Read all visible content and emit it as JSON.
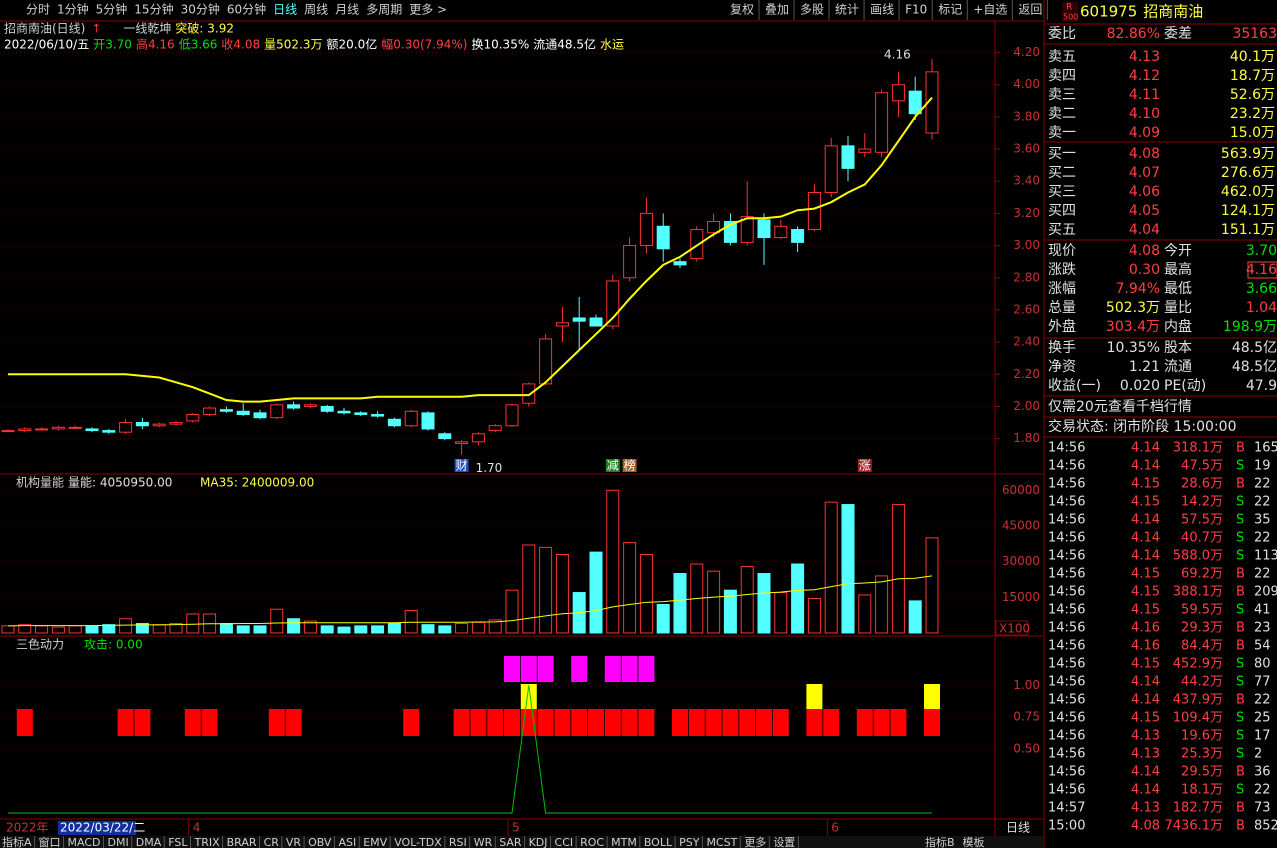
{
  "toolbar": {
    "left": [
      "分时",
      "1分钟",
      "5分钟",
      "15分钟",
      "30分钟",
      "60分钟",
      "日线",
      "周线",
      "月线",
      "多周期",
      "更多 >"
    ],
    "active": "日线",
    "right": [
      "复权",
      "叠加",
      "多股",
      "统计",
      "画线",
      "F10",
      "标记",
      "+自选",
      "返回"
    ]
  },
  "header": {
    "title": "招商南油(日线)",
    "indicator": "一线乾坤",
    "breakout": "突破: 3.92"
  },
  "info": [
    {
      "text": "2022/06/10/五",
      "color": "#ffffff"
    },
    {
      "text": "开3.70",
      "color": "#00e000"
    },
    {
      "text": "高4.16",
      "color": "#ff4040"
    },
    {
      "text": "低3.66",
      "color": "#00e000"
    },
    {
      "text": "收4.08",
      "color": "#ff4040"
    },
    {
      "text": "量502.3万",
      "color": "#ffff40"
    },
    {
      "text": "额20.0亿",
      "color": "#ffffff"
    },
    {
      "text": "幅0.30(7.94%)",
      "color": "#ff4040"
    },
    {
      "text": "换10.35%",
      "color": "#ffffff"
    },
    {
      "text": "流通48.5亿",
      "color": "#ffffff"
    },
    {
      "text": "水运",
      "color": "#ffff40"
    }
  ],
  "price_chart": {
    "ylim": [
      1.58,
      4.39
    ],
    "yticks": [
      {
        "value": 1.8,
        "label": "1.80"
      },
      {
        "value": 2.0,
        "label": "2.00"
      },
      {
        "value": 2.2,
        "label": "2.20"
      },
      {
        "value": 2.4,
        "label": "2.40"
      },
      {
        "value": 2.6,
        "label": "2.60"
      },
      {
        "value": 2.8,
        "label": "2.80"
      },
      {
        "value": 3.0,
        "label": "3.00"
      },
      {
        "value": 3.2,
        "label": "3.20"
      },
      {
        "value": 3.4,
        "label": "3.40"
      },
      {
        "value": 3.6,
        "label": "3.60"
      },
      {
        "value": 3.8,
        "label": "3.80"
      },
      {
        "value": 4.0,
        "label": "4.00"
      },
      {
        "value": 4.2,
        "label": "4.20"
      }
    ],
    "up_color": "#ff3232",
    "down_color": "#54ffff",
    "ma_color": "#ffff00",
    "candles": [
      [
        1.85,
        1.86,
        1.84,
        1.85
      ],
      [
        1.85,
        1.87,
        1.84,
        1.86
      ],
      [
        1.86,
        1.87,
        1.85,
        1.86
      ],
      [
        1.86,
        1.88,
        1.85,
        1.87
      ],
      [
        1.87,
        1.88,
        1.86,
        1.87
      ],
      [
        1.86,
        1.87,
        1.84,
        1.85
      ],
      [
        1.85,
        1.86,
        1.83,
        1.84
      ],
      [
        1.84,
        1.92,
        1.83,
        1.9
      ],
      [
        1.9,
        1.93,
        1.86,
        1.88
      ],
      [
        1.88,
        1.9,
        1.87,
        1.89
      ],
      [
        1.89,
        1.91,
        1.88,
        1.9
      ],
      [
        1.91,
        1.96,
        1.9,
        1.95
      ],
      [
        1.95,
        2.0,
        1.94,
        1.99
      ],
      [
        1.98,
        2.0,
        1.96,
        1.97
      ],
      [
        1.97,
        2.02,
        1.94,
        1.95
      ],
      [
        1.96,
        1.98,
        1.92,
        1.93
      ],
      [
        1.93,
        2.02,
        1.92,
        2.01
      ],
      [
        2.01,
        2.03,
        1.98,
        1.99
      ],
      [
        2.0,
        2.02,
        1.99,
        2.01
      ],
      [
        2.0,
        2.01,
        1.96,
        1.97
      ],
      [
        1.97,
        1.99,
        1.95,
        1.96
      ],
      [
        1.96,
        1.97,
        1.94,
        1.95
      ],
      [
        1.95,
        1.97,
        1.93,
        1.94
      ],
      [
        1.92,
        1.93,
        1.87,
        1.88
      ],
      [
        1.88,
        1.98,
        1.87,
        1.97
      ],
      [
        1.96,
        1.97,
        1.85,
        1.86
      ],
      [
        1.83,
        1.84,
        1.79,
        1.8
      ],
      [
        1.77,
        1.79,
        1.7,
        1.78
      ],
      [
        1.78,
        1.84,
        1.76,
        1.83
      ],
      [
        1.85,
        1.89,
        1.84,
        1.88
      ],
      [
        1.88,
        2.02,
        1.87,
        2.01
      ],
      [
        2.02,
        2.15,
        2.0,
        2.14
      ],
      [
        2.14,
        2.45,
        2.13,
        2.42
      ],
      [
        2.5,
        2.62,
        2.4,
        2.52
      ],
      [
        2.55,
        2.68,
        2.35,
        2.53
      ],
      [
        2.55,
        2.57,
        2.5,
        2.5
      ],
      [
        2.5,
        2.82,
        2.48,
        2.78
      ],
      [
        2.8,
        3.05,
        2.78,
        3.0
      ],
      [
        3.0,
        3.3,
        2.95,
        3.2
      ],
      [
        3.12,
        3.2,
        2.9,
        2.98
      ],
      [
        2.9,
        2.92,
        2.86,
        2.88
      ],
      [
        2.92,
        3.12,
        2.9,
        3.1
      ],
      [
        3.08,
        3.2,
        3.05,
        3.15
      ],
      [
        3.15,
        3.2,
        3.0,
        3.02
      ],
      [
        3.02,
        3.4,
        3.0,
        3.18
      ],
      [
        3.16,
        3.2,
        2.88,
        3.05
      ],
      [
        3.05,
        3.16,
        3.04,
        3.12
      ],
      [
        3.1,
        3.12,
        2.96,
        3.02
      ],
      [
        3.1,
        3.38,
        3.09,
        3.33
      ],
      [
        3.33,
        3.67,
        3.3,
        3.62
      ],
      [
        3.62,
        3.68,
        3.4,
        3.48
      ],
      [
        3.58,
        3.7,
        3.55,
        3.6
      ],
      [
        3.58,
        3.97,
        3.55,
        3.95
      ],
      [
        3.9,
        4.08,
        3.8,
        4.0
      ],
      [
        3.96,
        4.05,
        3.78,
        3.82
      ],
      [
        3.7,
        4.16,
        3.66,
        4.08
      ]
    ],
    "ma": [
      2.2,
      2.2,
      2.2,
      2.2,
      2.2,
      2.2,
      2.2,
      2.2,
      2.19,
      2.18,
      2.15,
      2.12,
      2.08,
      2.04,
      2.03,
      2.03,
      2.04,
      2.05,
      2.05,
      2.05,
      2.05,
      2.05,
      2.06,
      2.06,
      2.06,
      2.06,
      2.06,
      2.06,
      2.07,
      2.07,
      2.07,
      2.07,
      2.15,
      2.25,
      2.35,
      2.45,
      2.55,
      2.67,
      2.78,
      2.88,
      2.93,
      3.0,
      3.07,
      3.13,
      3.17,
      3.17,
      3.18,
      3.22,
      3.23,
      3.27,
      3.33,
      3.38,
      3.5,
      3.65,
      3.8,
      3.92
    ],
    "annotations": {
      "high": "4.16",
      "low": "1.70",
      "tags": [
        "财",
        "减",
        "榜",
        "涨"
      ]
    }
  },
  "volume_chart": {
    "title": "机构量能",
    "value": "量能: 4050950.00",
    "ma": "MA35: 2400009.00",
    "unit": "X100",
    "ylim": [
      0,
      66000
    ],
    "yticks": [
      15000,
      30000,
      45000,
      60000
    ],
    "values": [
      3000,
      3500,
      3000,
      2500,
      3000,
      3000,
      3500,
      6000,
      4000,
      3500,
      4000,
      8000,
      8000,
      4000,
      3000,
      3000,
      10000,
      6000,
      5000,
      3000,
      2500,
      3000,
      3000,
      4000,
      9500,
      3500,
      3000,
      4000,
      4500,
      5500,
      18000,
      37000,
      36000,
      33000,
      17000,
      34000,
      60000,
      38000,
      33000,
      12000,
      25000,
      29000,
      26000,
      18000,
      28000,
      25000,
      17000,
      29000,
      14500,
      55000,
      54000,
      16000,
      24000,
      54000,
      13500,
      40000
    ],
    "ma_values": [
      3000,
      3100,
      3100,
      3100,
      3100,
      3100,
      3200,
      3300,
      3400,
      3400,
      3500,
      3700,
      3900,
      3900,
      4000,
      4000,
      4200,
      4300,
      4300,
      4300,
      4300,
      4300,
      4300,
      4300,
      4500,
      4500,
      4500,
      4500,
      4600,
      4700,
      5200,
      6200,
      7200,
      8100,
      8500,
      9400,
      11000,
      12000,
      12900,
      13200,
      13800,
      14500,
      15100,
      15500,
      16200,
      16800,
      17200,
      17900,
      18200,
      19500,
      20700,
      21000,
      21500,
      22800,
      23000,
      24000
    ]
  },
  "indicator": {
    "title": "三色动力",
    "attack": "攻击: 0.00",
    "ylim": [
      0,
      1.3
    ],
    "yticks": [
      {
        "value": 0.5,
        "label": "0.50"
      },
      {
        "value": 0.75,
        "label": "0.75"
      },
      {
        "value": 1.0,
        "label": "1.00"
      }
    ],
    "red": [
      1,
      7,
      8,
      11,
      12,
      16,
      17,
      24,
      27,
      28,
      29,
      30,
      31,
      32,
      33,
      34,
      35,
      36,
      37,
      38,
      40,
      41,
      42,
      43,
      44,
      45,
      46,
      48,
      49,
      51,
      52,
      53,
      55
    ],
    "yellow": [
      31,
      48,
      55
    ],
    "magenta": [
      30,
      31,
      32,
      34,
      36,
      37,
      38
    ],
    "line": [
      0,
      0,
      0,
      0,
      0,
      0,
      0,
      0,
      0,
      0,
      0,
      0,
      0,
      0,
      0,
      0,
      0,
      0,
      0,
      0,
      0,
      0,
      0,
      0,
      0,
      0,
      0,
      0,
      0,
      0,
      0,
      1,
      0,
      0,
      0,
      0,
      0,
      0,
      0,
      0,
      0,
      0,
      0,
      0,
      0,
      0,
      0,
      0,
      0,
      0,
      0,
      0,
      0,
      0,
      0,
      0
    ]
  },
  "date_axis": {
    "year": "2022年",
    "cursor": "2022/03/22/二",
    "months": [
      "4",
      "5",
      "6"
    ],
    "period": "日线"
  },
  "quote": {
    "code": "601975",
    "name": "招商南油",
    "badge": "R",
    "badge_sub": "500",
    "ratio": {
      "label": "委比",
      "value": "82.86%",
      "label2": "委差",
      "value2": "35163"
    },
    "asks": [
      [
        "卖五",
        "4.13",
        "40.1万"
      ],
      [
        "卖四",
        "4.12",
        "18.7万"
      ],
      [
        "卖三",
        "4.11",
        "52.6万"
      ],
      [
        "卖二",
        "4.10",
        "23.2万"
      ],
      [
        "卖一",
        "4.09",
        "15.0万"
      ]
    ],
    "bids": [
      [
        "买一",
        "4.08",
        "563.9万"
      ],
      [
        "买二",
        "4.07",
        "276.6万"
      ],
      [
        "买三",
        "4.06",
        "462.0万"
      ],
      [
        "买四",
        "4.05",
        "124.1万"
      ],
      [
        "买五",
        "4.04",
        "151.1万"
      ]
    ],
    "stats": [
      [
        {
          "t": "现价",
          "c": "#e0e0e0"
        },
        {
          "t": "4.08",
          "c": "#ff4040"
        },
        {
          "t": "今开",
          "c": "#e0e0e0"
        },
        {
          "t": "3.70",
          "c": "#00e000"
        }
      ],
      [
        {
          "t": "涨跌",
          "c": "#e0e0e0"
        },
        {
          "t": "0.30",
          "c": "#ff4040"
        },
        {
          "t": "最高",
          "c": "#e0e0e0"
        },
        {
          "t": "4.16",
          "c": "#ff4040"
        }
      ],
      [
        {
          "t": "涨幅",
          "c": "#e0e0e0"
        },
        {
          "t": "7.94%",
          "c": "#ff4040"
        },
        {
          "t": "最低",
          "c": "#e0e0e0"
        },
        {
          "t": "3.66",
          "c": "#00e000"
        }
      ],
      [
        {
          "t": "总量",
          "c": "#e0e0e0"
        },
        {
          "t": "502.3万",
          "c": "#ffff40"
        },
        {
          "t": "量比",
          "c": "#e0e0e0"
        },
        {
          "t": "1.04",
          "c": "#ff4040"
        }
      ],
      [
        {
          "t": "外盘",
          "c": "#e0e0e0"
        },
        {
          "t": "303.4万",
          "c": "#ff4040"
        },
        {
          "t": "内盘",
          "c": "#e0e0e0"
        },
        {
          "t": "198.9万",
          "c": "#00e000"
        }
      ],
      [
        {
          "t": "换手",
          "c": "#e0e0e0"
        },
        {
          "t": "10.35%",
          "c": "#e0e0e0"
        },
        {
          "t": "股本",
          "c": "#e0e0e0"
        },
        {
          "t": "48.5亿",
          "c": "#e0e0e0"
        }
      ],
      [
        {
          "t": "净资",
          "c": "#e0e0e0"
        },
        {
          "t": "1.21",
          "c": "#e0e0e0"
        },
        {
          "t": "流通",
          "c": "#e0e0e0"
        },
        {
          "t": "48.5亿",
          "c": "#e0e0e0"
        }
      ],
      [
        {
          "t": "收益(一)",
          "c": "#e0e0e0"
        },
        {
          "t": "0.020",
          "c": "#e0e0e0"
        },
        {
          "t": "PE(动)",
          "c": "#e0e0e0"
        },
        {
          "t": "47.9",
          "c": "#e0e0e0"
        }
      ]
    ],
    "promo": "仅需20元查看千档行情",
    "status": "交易状态: 闭市阶段 15:00:00",
    "trades": [
      [
        "14:56",
        "4.14",
        "318.1万",
        "B",
        "165"
      ],
      [
        "14:56",
        "4.14",
        "47.5万",
        "S",
        "19"
      ],
      [
        "14:56",
        "4.15",
        "28.6万",
        "B",
        "22"
      ],
      [
        "14:56",
        "4.15",
        "14.2万",
        "S",
        "22"
      ],
      [
        "14:56",
        "4.14",
        "57.5万",
        "S",
        "35"
      ],
      [
        "14:56",
        "4.14",
        "40.7万",
        "S",
        "22"
      ],
      [
        "14:56",
        "4.14",
        "588.0万",
        "S",
        "113"
      ],
      [
        "14:56",
        "4.15",
        "69.2万",
        "B",
        "22"
      ],
      [
        "14:56",
        "4.15",
        "388.1万",
        "B",
        "209"
      ],
      [
        "14:56",
        "4.15",
        "59.5万",
        "S",
        "41"
      ],
      [
        "14:56",
        "4.16",
        "29.3万",
        "B",
        "23"
      ],
      [
        "14:56",
        "4.16",
        "84.4万",
        "B",
        "54"
      ],
      [
        "14:56",
        "4.15",
        "452.9万",
        "S",
        "80"
      ],
      [
        "14:56",
        "4.14",
        "44.2万",
        "S",
        "77"
      ],
      [
        "14:56",
        "4.14",
        "437.9万",
        "B",
        "22"
      ],
      [
        "14:56",
        "4.15",
        "109.4万",
        "S",
        "25"
      ],
      [
        "14:56",
        "4.13",
        "19.6万",
        "S",
        "17"
      ],
      [
        "14:56",
        "4.13",
        "25.3万",
        "S",
        "2"
      ],
      [
        "14:56",
        "4.14",
        "29.5万",
        "B",
        "36"
      ],
      [
        "14:56",
        "4.14",
        "18.1万",
        "S",
        "22"
      ],
      [
        "14:57",
        "4.13",
        "182.7万",
        "B",
        "73"
      ],
      [
        "15:00",
        "4.08",
        "7436.1万",
        "B",
        "852"
      ]
    ]
  },
  "tabs": [
    "指标A",
    "窗口",
    "MACD",
    "DMI",
    "DMA",
    "FSL",
    "TRIX",
    "BRAR",
    "CR",
    "VR",
    "OBV",
    "ASI",
    "EMV",
    "VOL-TDX",
    "RSI",
    "WR",
    "SAR",
    "KDJ",
    "CCI",
    "ROC",
    "MTM",
    "BOLL",
    "PSY",
    "MCST",
    "更多",
    "设置"
  ],
  "tabs_right": [
    "指标B",
    "模板"
  ]
}
